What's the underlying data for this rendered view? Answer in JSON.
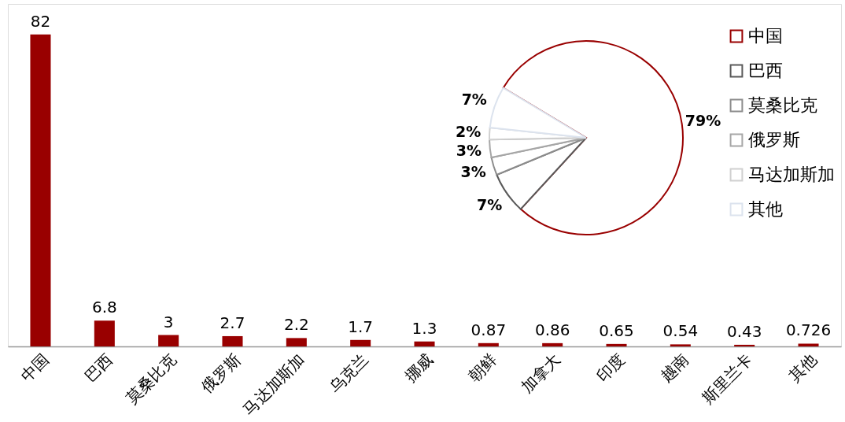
{
  "chart_data": [
    {
      "type": "bar",
      "categories": [
        "中国",
        "巴西",
        "莫桑比克",
        "俄罗斯",
        "马达加斯加",
        "乌克兰",
        "挪威",
        "朝鲜",
        "加拿大",
        "印度",
        "越南",
        "斯里兰卡",
        "其他"
      ],
      "values": [
        82,
        6.8,
        3,
        2.7,
        2.2,
        1.7,
        1.3,
        0.87,
        0.86,
        0.65,
        0.54,
        0.43,
        0.726
      ],
      "color": "#990000",
      "data_labels": true,
      "ylim": [
        0,
        90
      ],
      "tick_labels": "x"
    },
    {
      "type": "pie",
      "categories": [
        "中国",
        "巴西",
        "莫桑比克",
        "俄罗斯",
        "马达加斯加",
        "其他"
      ],
      "values": [
        79,
        7,
        3,
        3,
        2,
        7
      ],
      "colors": [
        "#990000",
        "#595959",
        "#8c8c8c",
        "#a6a6a6",
        "#d0d0d0",
        "#dce3ee"
      ],
      "value_labels": [
        "79%",
        "7%",
        "3%",
        "3%",
        "2%",
        "7%"
      ],
      "legend": "right"
    }
  ]
}
